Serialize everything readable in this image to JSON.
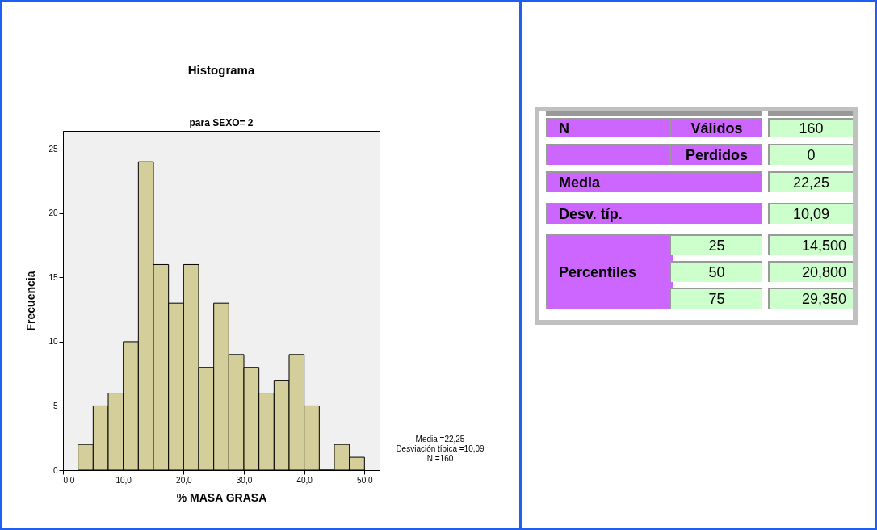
{
  "chart_data": [
    {
      "type": "histogram",
      "title": "Histograma",
      "subtitle": "para SEXO= 2",
      "xlabel": "% MASA GRASA",
      "ylabel": "Frecuencia",
      "color": "#d4cf9a",
      "bins": [
        2.5,
        5,
        7.5,
        10,
        12.5,
        15,
        17.5,
        20,
        22.5,
        25,
        27.5,
        30,
        32.5,
        35,
        37.5,
        40,
        42.5,
        45,
        47.5,
        50
      ],
      "values": [
        2,
        5,
        6,
        10,
        24,
        16,
        13,
        16,
        8,
        13,
        9,
        8,
        6,
        7,
        9,
        5,
        0,
        2,
        1
      ],
      "xlim": [
        0,
        52.5
      ],
      "xticks": [
        {
          "value": 0,
          "label": "0,0"
        },
        {
          "value": 10,
          "label": "10,0"
        },
        {
          "value": 20,
          "label": "20,0"
        },
        {
          "value": 30,
          "label": "30,0"
        },
        {
          "value": 40,
          "label": "40,0"
        },
        {
          "value": 50,
          "label": "50,0"
        }
      ],
      "ylim": [
        0,
        26.4
      ],
      "yticks": [
        0,
        5,
        10,
        15,
        20,
        25
      ],
      "annotations": [
        "Media =22,25\nDesviación típica =10,09\nN =160"
      ]
    },
    {
      "type": "other",
      "annotations": [
        "N",
        "Válidos",
        "160",
        "Perdidos",
        "0",
        "Media",
        "22,25",
        "Desv. típ.",
        "10,09",
        "Percentiles",
        "25",
        "14,500",
        "50",
        "20,800",
        "75",
        "29,350"
      ]
    }
  ]
}
